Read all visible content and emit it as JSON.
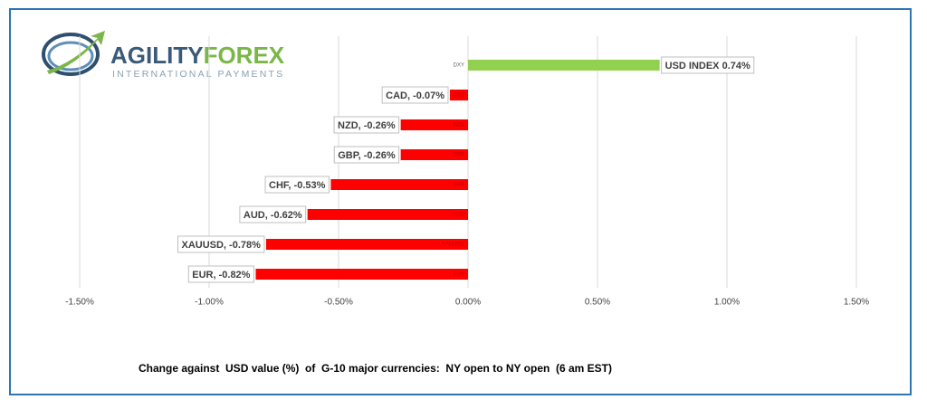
{
  "logo": {
    "brand_first": "AGILITY",
    "brand_second": "FOREX",
    "tagline": "INTERNATIONAL PAYMENTS"
  },
  "chart_data": {
    "type": "hbar",
    "xlabel": "Change against  USD value (%)  of  G-10 major currencies:  NY open to NY open  (6 am EST)",
    "categories": [
      "DXY",
      "CAD",
      "NZD",
      "GBP",
      "CHF",
      "AUD",
      "XAUUSD",
      "EUR"
    ],
    "values": [
      0.74,
      -0.07,
      -0.26,
      -0.26,
      -0.53,
      -0.62,
      -0.78,
      -0.82
    ],
    "value_labels": [
      "USD INDEX 0.74%",
      "CAD, -0.07%",
      "NZD, -0.26%",
      "GBP, -0.26%",
      "CHF, -0.53%",
      "AUD, -0.62%",
      "XAUUSD, -0.78%",
      "EUR, -0.82%"
    ],
    "positive_color": "#92d050",
    "negative_color": "#ff0000",
    "xlim": [
      -1.5,
      1.5
    ],
    "xticks": [
      {
        "value": -1.5,
        "label": "-1.50%"
      },
      {
        "value": -1,
        "label": "-1.00%"
      },
      {
        "value": -0.5,
        "label": "-0.50%"
      },
      {
        "value": 0,
        "label": "0.00%"
      },
      {
        "value": 0.5,
        "label": "0.50%"
      },
      {
        "value": 1,
        "label": "1.00%"
      },
      {
        "value": 1.5,
        "label": "1.50%"
      }
    ],
    "grid": true
  }
}
